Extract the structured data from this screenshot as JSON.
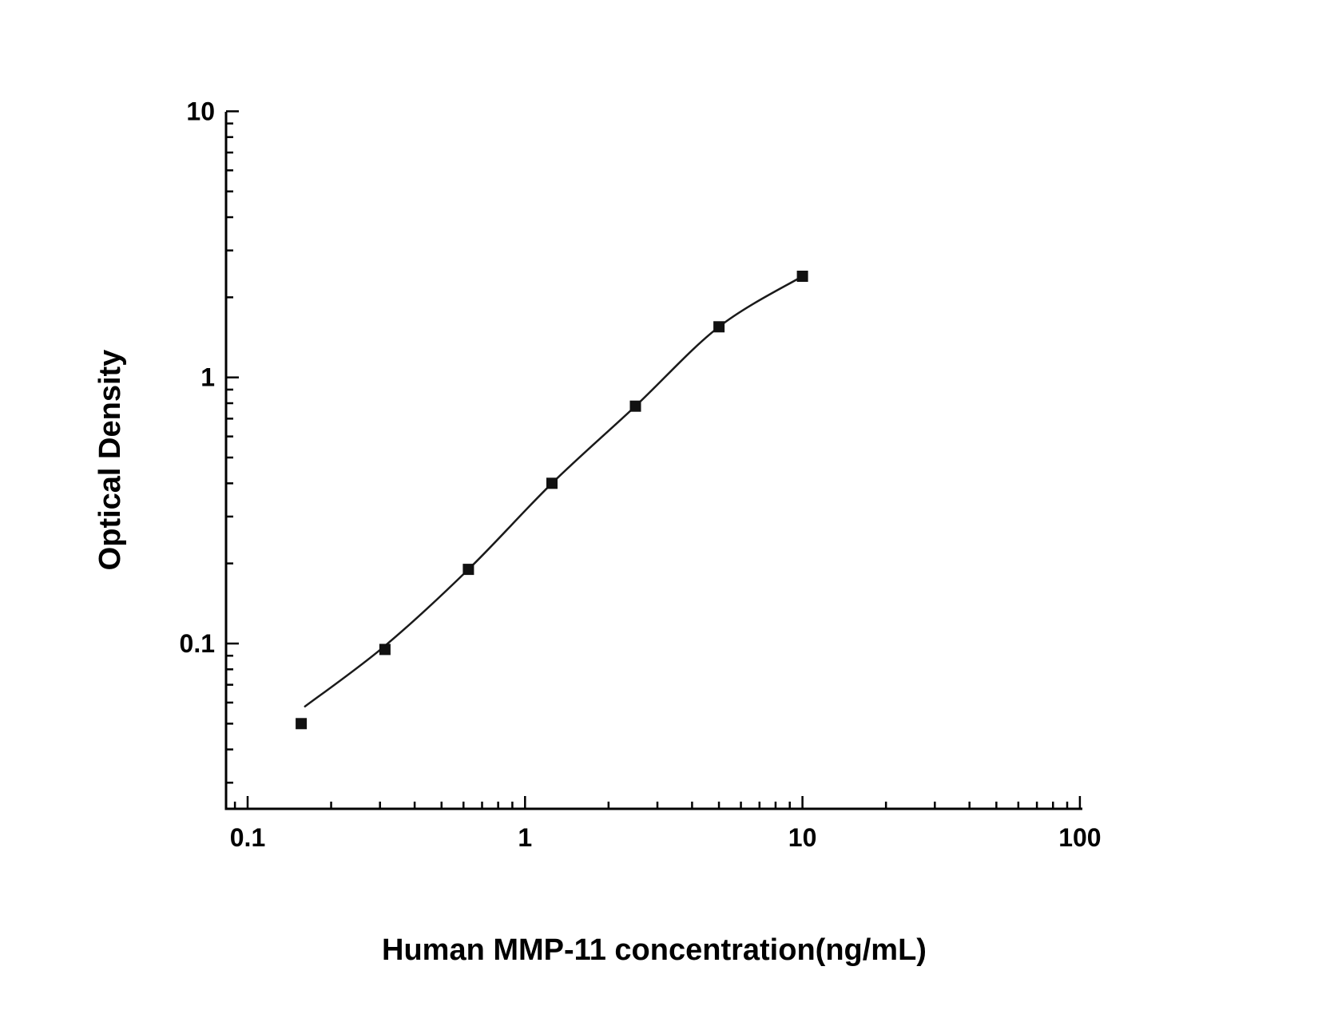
{
  "figure": {
    "background_color": "#ffffff",
    "line_color": "#1a1a1a",
    "marker_color": "#111111"
  },
  "chart_data": {
    "type": "scatter",
    "title": "",
    "xlabel": "Human MMP-11 concentration(ng/mL)",
    "ylabel": "Optical Density",
    "x_scale": "log",
    "y_scale": "log",
    "xlim": [
      0.084,
      100
    ],
    "ylim": [
      0.024,
      10
    ],
    "grid": false,
    "legend": "none",
    "x_major_ticks": [
      0.1,
      1,
      10,
      100
    ],
    "x_major_tick_labels": [
      "0.1",
      "1",
      "10",
      "100"
    ],
    "y_major_ticks": [
      0.1,
      1,
      10
    ],
    "y_major_tick_labels": [
      "0.1",
      "1",
      "10"
    ],
    "series": [
      {
        "name": "standard-curve-points",
        "marker": "square",
        "color": "#111111",
        "x": [
          0.156,
          0.3125,
          0.625,
          1.25,
          2.5,
          5,
          10
        ],
        "y": [
          0.05,
          0.095,
          0.19,
          0.4,
          0.78,
          1.55,
          2.4
        ]
      }
    ],
    "curve_anchors": {
      "x": [
        0.161,
        0.3125,
        0.625,
        1.25,
        2.5,
        5,
        10
      ],
      "y": [
        0.058,
        0.098,
        0.19,
        0.4,
        0.78,
        1.55,
        2.4
      ]
    }
  }
}
